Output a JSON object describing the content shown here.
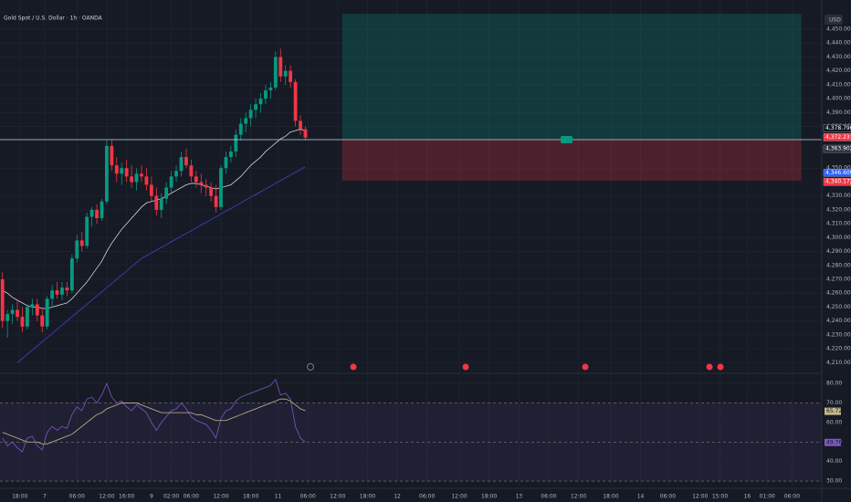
{
  "chart_data": [
    {
      "type": "candlestick",
      "title": "Gold Spot / U.S. Dollar · 1h · OANDA",
      "currency": "USD",
      "up_color": "#089981",
      "down_color": "#f23645",
      "open": [
        4270,
        4240,
        4245,
        4248,
        4243,
        4236,
        4250,
        4252,
        4244,
        4236,
        4256,
        4262,
        4259,
        4264,
        4262,
        4285,
        4298,
        4294,
        4315,
        4320,
        4314,
        4326,
        4366,
        4352,
        4346,
        4350,
        4344,
        4340,
        4346,
        4344,
        4338,
        4330,
        4320,
        4328,
        4336,
        4344,
        4348,
        4358,
        4352,
        4344,
        4340,
        4338,
        4336,
        4330,
        4322,
        4350,
        4358,
        4362,
        4374,
        4382,
        4386,
        4392,
        4396,
        4400,
        4406,
        4408,
        4430,
        4416,
        4420,
        4412,
        4384,
        4378
      ],
      "high": [
        4275,
        4248,
        4252,
        4255,
        4250,
        4252,
        4256,
        4256,
        4250,
        4258,
        4266,
        4268,
        4268,
        4268,
        4288,
        4302,
        4304,
        4318,
        4322,
        4324,
        4328,
        4370,
        4370,
        4358,
        4354,
        4356,
        4352,
        4350,
        4352,
        4350,
        4344,
        4336,
        4332,
        4340,
        4348,
        4352,
        4362,
        4364,
        4356,
        4348,
        4346,
        4342,
        4340,
        4338,
        4352,
        4362,
        4366,
        4378,
        4386,
        4390,
        4396,
        4400,
        4404,
        4410,
        4412,
        4434,
        4436,
        4424,
        4424,
        4414,
        4388,
        4380
      ],
      "low": [
        4235,
        4228,
        4238,
        4240,
        4232,
        4234,
        4244,
        4240,
        4232,
        4234,
        4250,
        4256,
        4255,
        4258,
        4260,
        4282,
        4290,
        4292,
        4308,
        4310,
        4312,
        4324,
        4348,
        4340,
        4338,
        4340,
        4336,
        4334,
        4340,
        4334,
        4326,
        4316,
        4314,
        4324,
        4332,
        4340,
        4344,
        4350,
        4340,
        4336,
        4332,
        4330,
        4326,
        4318,
        4320,
        4346,
        4354,
        4358,
        4370,
        4376,
        4380,
        4386,
        4390,
        4396,
        4400,
        4406,
        4412,
        4410,
        4408,
        4380,
        4374,
        4370
      ],
      "close": [
        4240,
        4245,
        4248,
        4243,
        4236,
        4250,
        4252,
        4244,
        4236,
        4256,
        4262,
        4259,
        4264,
        4262,
        4285,
        4298,
        4294,
        4315,
        4320,
        4314,
        4326,
        4366,
        4352,
        4346,
        4350,
        4344,
        4340,
        4346,
        4344,
        4338,
        4330,
        4320,
        4328,
        4336,
        4344,
        4348,
        4358,
        4352,
        4344,
        4340,
        4338,
        4336,
        4330,
        4322,
        4350,
        4358,
        4362,
        4374,
        4382,
        4386,
        4392,
        4396,
        4400,
        4406,
        4408,
        4430,
        4416,
        4420,
        4412,
        4384,
        4378,
        4372
      ],
      "series": [
        {
          "color": "#d1d4dc",
          "values": [
            4262,
            4260,
            4257,
            4255,
            4253,
            4251,
            4250,
            4250,
            4249,
            4249,
            4250,
            4251,
            4252,
            4253,
            4256,
            4260,
            4264,
            4268,
            4273,
            4278,
            4283,
            4290,
            4296,
            4301,
            4306,
            4310,
            4314,
            4318,
            4322,
            4325,
            4326,
            4327,
            4328,
            4330,
            4332,
            4334,
            4336,
            4338,
            4339,
            4339,
            4338,
            4337,
            4336,
            4335,
            4336,
            4337,
            4338,
            4341,
            4344,
            4348,
            4352,
            4355,
            4358,
            4362,
            4365,
            4368,
            4371,
            4373,
            4376,
            4377,
            4378,
            4377
          ]
        },
        {
          "color": "#4a3fc4",
          "values": [
            null,
            null,
            null,
            4210,
            4213,
            4216,
            4219,
            4222,
            4225,
            4228,
            4231,
            4234,
            4237,
            4240,
            4243,
            4246,
            4249,
            4252,
            4255,
            4258,
            4261,
            4264,
            4267,
            4270,
            4273,
            4276,
            4279,
            4282,
            4285,
            4287,
            4289,
            4291,
            4293,
            4295,
            4297,
            4299,
            4301,
            4303,
            4305,
            4307,
            4309,
            4311,
            4313,
            4315,
            4317,
            4319,
            4321,
            4323,
            4325,
            4327,
            4329,
            4331,
            4333,
            4335,
            4337,
            4339,
            4341,
            4343,
            4345,
            4347,
            4349,
            4351
          ]
        }
      ],
      "position": {
        "entry": 4370.5,
        "target": 4461,
        "stop": 4341,
        "xrange": [
          68.4,
          160.9
        ]
      },
      "price_tags": [
        {
          "value": 4378.796,
          "label": "4,378.796",
          "color": "#131722"
        },
        {
          "value": 4372.23,
          "label": "4,372.23",
          "color": "#f23645"
        },
        {
          "value": 4363.902,
          "label": "4,363.902",
          "color": "#2a2e39"
        },
        {
          "value": 4346.609,
          "label": "4,346.609",
          "color": "#2962ff"
        },
        {
          "value": 4340.172,
          "label": "4,340.172",
          "color": "#f23645"
        }
      ],
      "xlim": [
        -0.5,
        165
      ],
      "xticks": [
        {
          "value": 3.5,
          "label": "18:00"
        },
        {
          "value": 8.5,
          "label": "7"
        },
        {
          "value": 15,
          "label": "06:00"
        },
        {
          "value": 21,
          "label": "12:00"
        },
        {
          "value": 25,
          "label": "16:00"
        },
        {
          "value": 30,
          "label": "9"
        },
        {
          "value": 34,
          "label": "02:00"
        },
        {
          "value": 38,
          "label": "06:00"
        },
        {
          "value": 44,
          "label": "12:00"
        },
        {
          "value": 50,
          "label": "18:00"
        },
        {
          "value": 55.5,
          "label": "11"
        },
        {
          "value": 61.5,
          "label": "06:00"
        },
        {
          "value": 67.5,
          "label": "12:00"
        },
        {
          "value": 73.5,
          "label": "18:00"
        },
        {
          "value": 79.5,
          "label": "12"
        },
        {
          "value": 85.5,
          "label": "06:00"
        },
        {
          "value": 92,
          "label": "12:00"
        },
        {
          "value": 98,
          "label": "18:00"
        },
        {
          "value": 104,
          "label": "13"
        },
        {
          "value": 110,
          "label": "06:00"
        },
        {
          "value": 116,
          "label": "12:00"
        },
        {
          "value": 122.5,
          "label": "18:00"
        },
        {
          "value": 128.5,
          "label": "14"
        },
        {
          "value": 134,
          "label": "06:00"
        },
        {
          "value": 140.5,
          "label": "12:00"
        },
        {
          "value": 144.5,
          "label": "15:00"
        },
        {
          "value": 150,
          "label": "16"
        },
        {
          "value": 154,
          "label": "01:00"
        },
        {
          "value": 159,
          "label": "06:00"
        }
      ],
      "ylim": [
        4203,
        4471
      ],
      "yticks": [
        {
          "value": 4450,
          "label": "4,450.000"
        },
        {
          "value": 4440,
          "label": "4,440.000"
        },
        {
          "value": 4430,
          "label": "4,430.000"
        },
        {
          "value": 4420,
          "label": "4,420.000"
        },
        {
          "value": 4410,
          "label": "4,410.000"
        },
        {
          "value": 4400,
          "label": "4,400.000"
        },
        {
          "value": 4390,
          "label": "4,390.000"
        },
        {
          "value": 4380,
          "label": "4,380.000"
        },
        {
          "value": 4350,
          "label": "4,350.000"
        },
        {
          "value": 4330,
          "label": "4,330.000"
        },
        {
          "value": 4320,
          "label": "4,320.000"
        },
        {
          "value": 4310,
          "label": "4,310.000"
        },
        {
          "value": 4300,
          "label": "4,300.000"
        },
        {
          "value": 4290,
          "label": "4,290.000"
        },
        {
          "value": 4280,
          "label": "4,280.000"
        },
        {
          "value": 4270,
          "label": "4,270.000"
        },
        {
          "value": 4260,
          "label": "4,260.000"
        },
        {
          "value": 4250,
          "label": "4,250.000"
        },
        {
          "value": 4240,
          "label": "4,240.000"
        },
        {
          "value": 4230,
          "label": "4,230.000"
        },
        {
          "value": 4220,
          "label": "4,220.000"
        },
        {
          "value": 4210,
          "label": "4,210.000"
        }
      ],
      "grid": true
    },
    {
      "type": "line",
      "series": [
        {
          "color": "#7e57c2",
          "values": [
            52,
            48,
            50,
            47,
            45,
            52,
            53,
            48,
            46,
            55,
            58,
            56,
            58,
            57,
            64,
            68,
            66,
            72,
            73,
            70,
            74,
            80,
            73,
            70,
            71,
            68,
            66,
            69,
            67,
            65,
            60,
            56,
            60,
            63,
            66,
            67,
            70,
            67,
            63,
            61,
            60,
            59,
            56,
            52,
            62,
            66,
            67,
            71,
            73,
            74,
            75,
            76,
            77,
            78,
            79,
            82,
            74,
            75,
            72,
            58,
            52,
            50
          ]
        },
        {
          "color": "#c8b98a",
          "values": [
            55,
            54,
            53,
            52,
            51,
            50,
            50,
            50,
            49,
            49,
            50,
            51,
            52,
            53,
            54,
            56,
            58,
            60,
            62,
            64,
            65,
            67,
            68,
            69,
            70,
            70,
            70,
            70,
            69,
            68,
            67,
            66,
            65,
            65,
            65,
            65,
            65,
            65,
            65,
            64,
            64,
            63,
            62,
            61,
            61,
            61,
            62,
            63,
            64,
            65,
            66,
            67,
            68,
            69,
            70,
            71,
            72,
            72,
            71,
            69,
            67,
            66
          ]
        }
      ],
      "band": [
        30,
        70
      ],
      "midline": 50,
      "tags": [
        {
          "value": 65.72,
          "label": "65.72",
          "color": "#c8b98a"
        },
        {
          "value": 49.76,
          "label": "49.76",
          "color": "#7e57c2"
        }
      ],
      "xlim": [
        -0.5,
        165
      ],
      "ylim": [
        27.7,
        84.7
      ],
      "yticks": [
        {
          "value": 80,
          "label": "80.00"
        },
        {
          "value": 70,
          "label": "70.00"
        },
        {
          "value": 60,
          "label": "60.00"
        },
        {
          "value": 50,
          "label": "50.00"
        },
        {
          "value": 40,
          "label": "40.00"
        },
        {
          "value": 30,
          "label": "30.00"
        }
      ]
    }
  ]
}
